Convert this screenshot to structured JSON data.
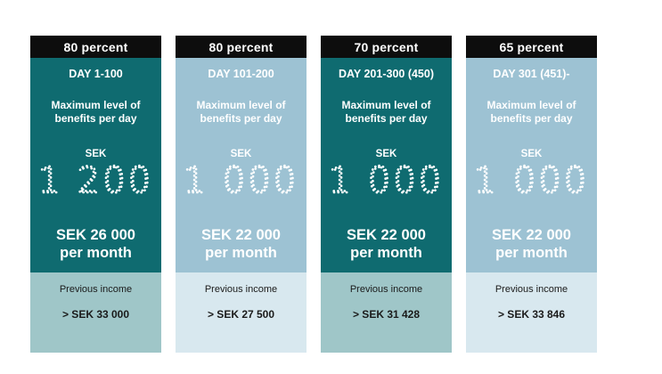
{
  "columns": [
    {
      "header": "80 percent",
      "days": "DAY 1-100",
      "max_label": "Maximum level of benefits per day",
      "currency": "SEK",
      "daily_amount": "1 200",
      "monthly": "SEK 26 000",
      "monthly_unit": "per month",
      "previous_label": "Previous income",
      "previous_income": "> SEK 33 000",
      "theme": "dark"
    },
    {
      "header": "80 percent",
      "days": "DAY 101-200",
      "max_label": "Maximum level of benefits per day",
      "currency": "SEK",
      "daily_amount": "1 000",
      "monthly": "SEK 22 000",
      "monthly_unit": "per month",
      "previous_label": "Previous income",
      "previous_income": "> SEK 27 500",
      "theme": "light"
    },
    {
      "header": "70 percent",
      "days": "DAY 201-300 (450)",
      "max_label": "Maximum level of benefits per day",
      "currency": "SEK",
      "daily_amount": "1 000",
      "monthly": "SEK 22 000",
      "monthly_unit": "per month",
      "previous_label": "Previous income",
      "previous_income": "> SEK 31 428",
      "theme": "dark"
    },
    {
      "header": "65 percent",
      "days": "DAY 301 (451)-",
      "max_label": "Maximum level of benefits per day",
      "currency": "SEK",
      "daily_amount": "1 000",
      "monthly": "SEK 22 000",
      "monthly_unit": "per month",
      "previous_label": "Previous income",
      "previous_income": "> SEK 33 846",
      "theme": "light"
    }
  ],
  "colors": {
    "header_bg": "#0d0d0d",
    "dark_main": "#0f6b70",
    "light_main": "#9dc2d3",
    "dark_foot": "#9fc6c8",
    "light_foot": "#d8e8ef"
  }
}
